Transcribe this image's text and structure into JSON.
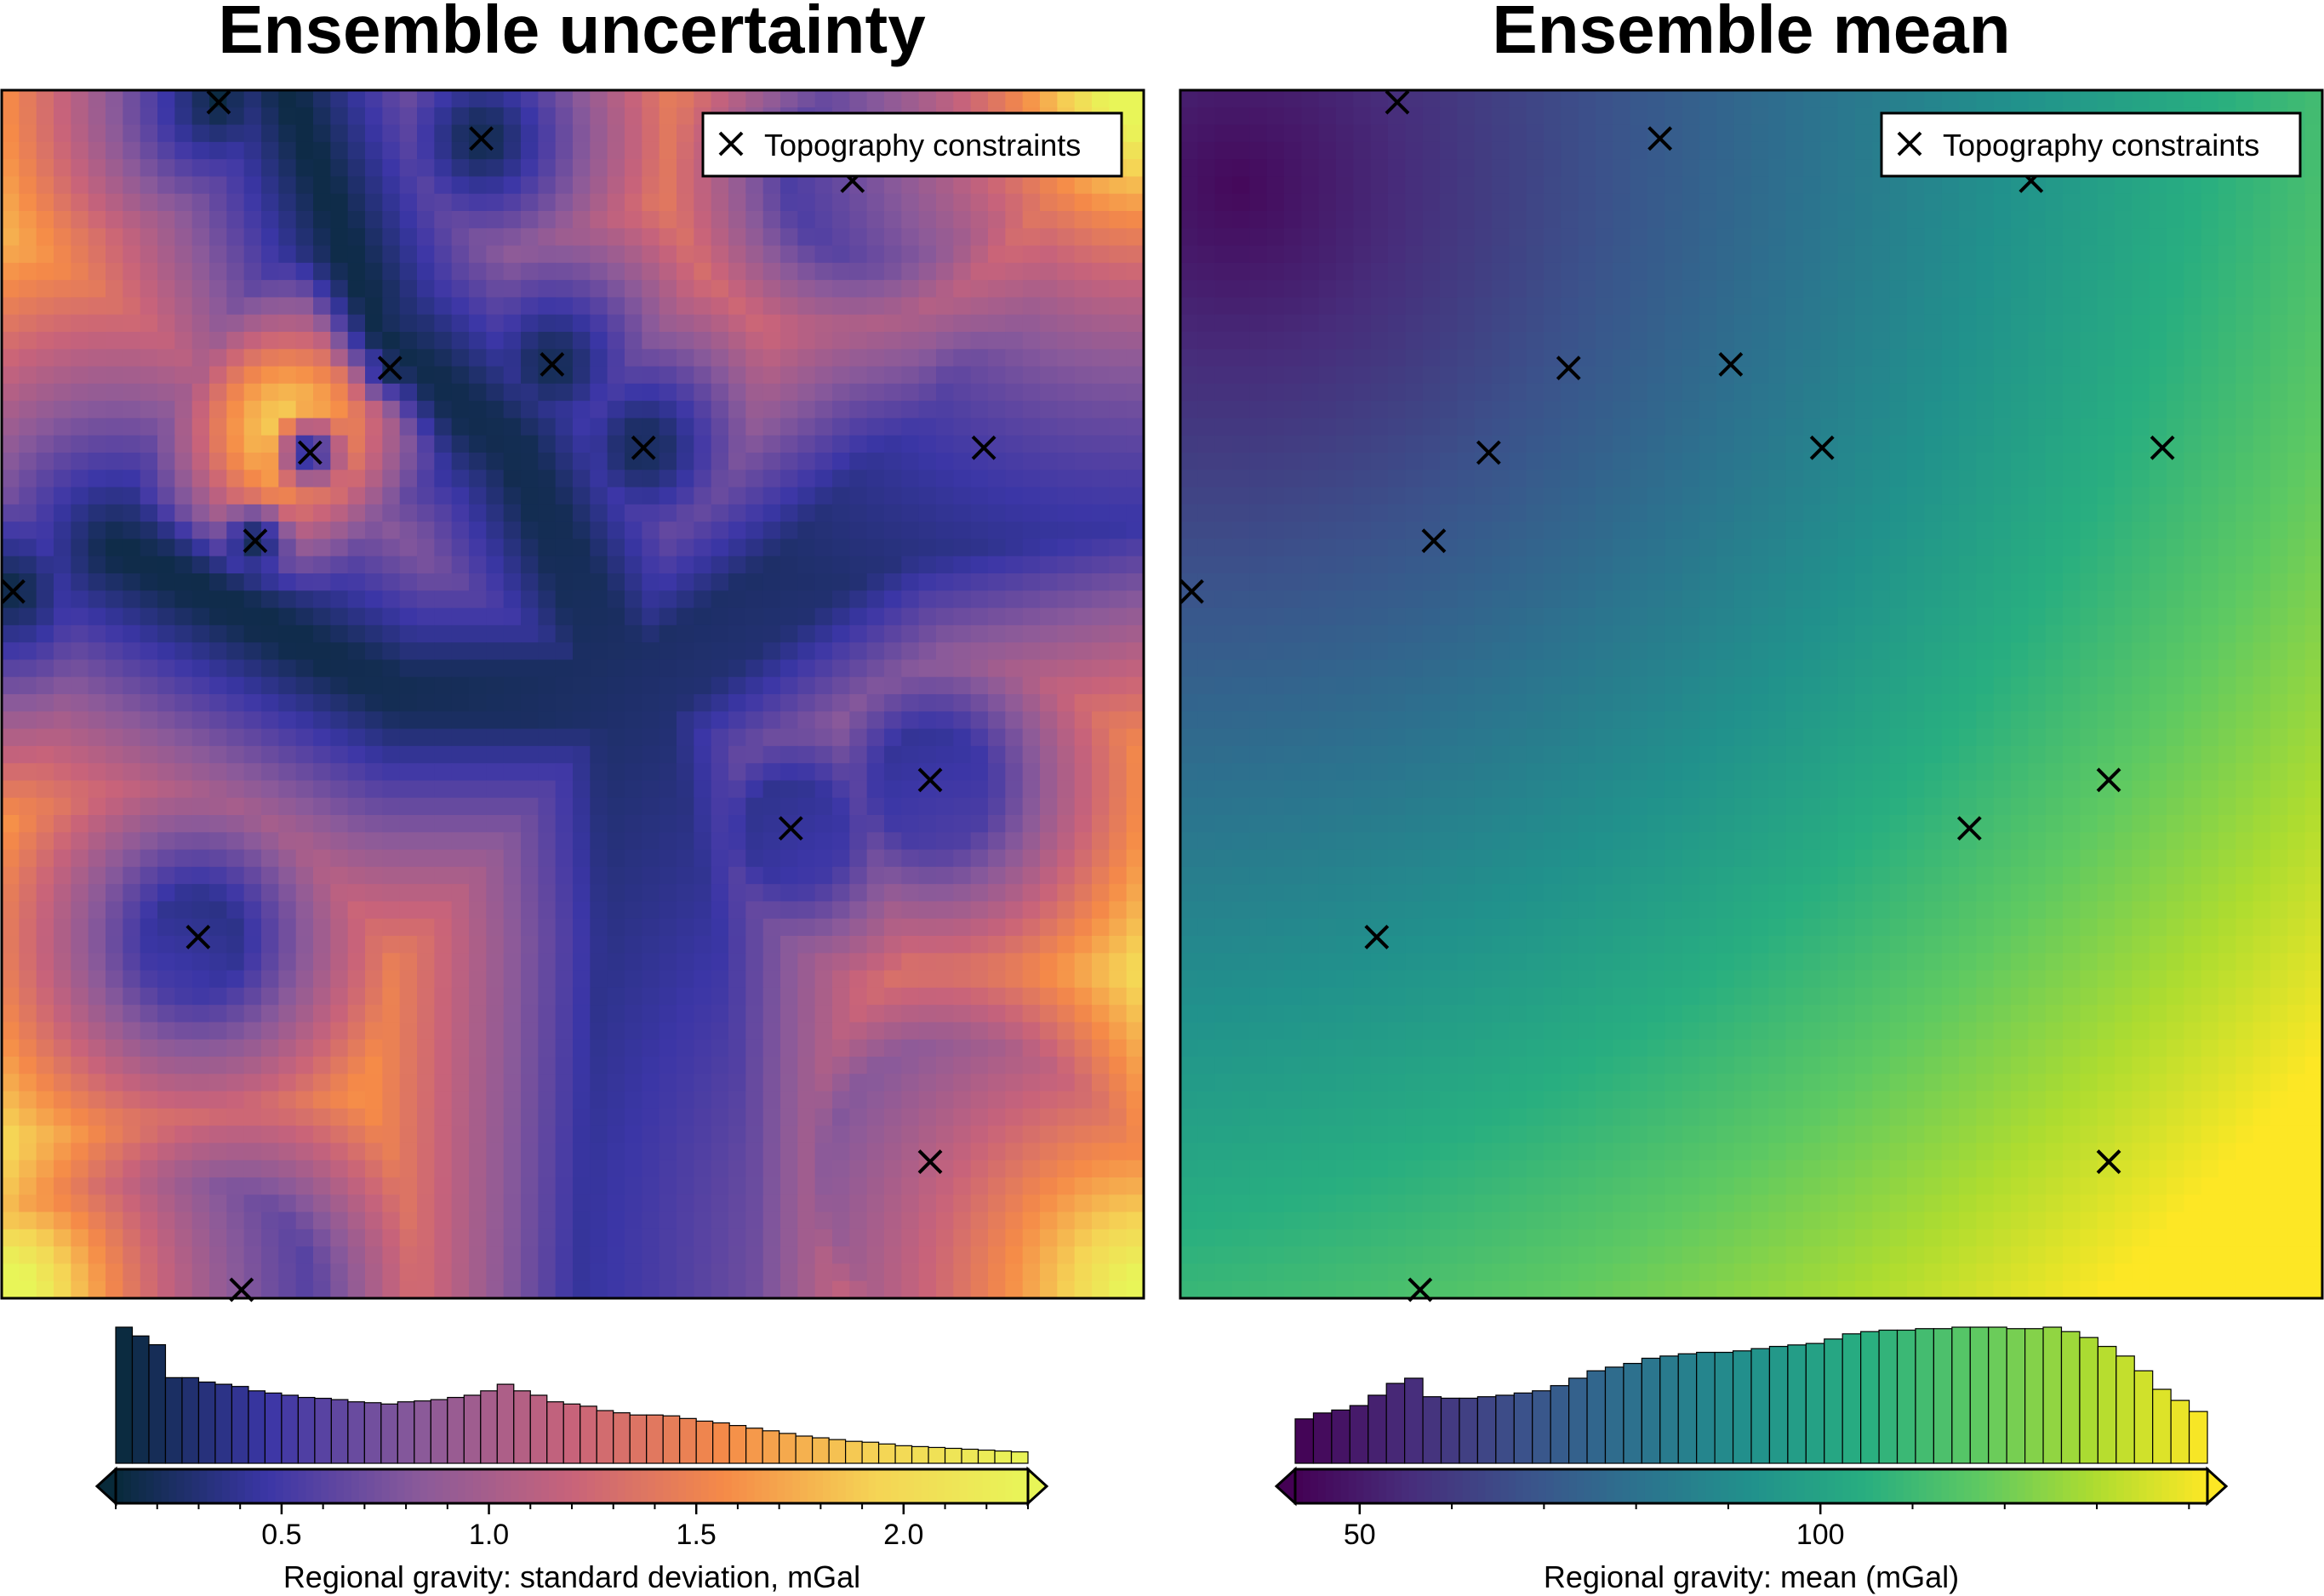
{
  "chart_data": [
    {
      "type": "heatmap",
      "title": "Ensemble uncertainty",
      "legend": {
        "label": "Topography constraints",
        "placement": "top-right"
      },
      "colormap": "thermal",
      "colors": [
        "#082a3a",
        "#3b36a6",
        "#8a5a9a",
        "#c8637a",
        "#f58a48",
        "#f5d455",
        "#e8f558"
      ],
      "colorbar": {
        "label": "Regional gravity:  standard deviation, mGal",
        "range": [
          0.1,
          2.3
        ],
        "ticks": [
          "0.5",
          "1.0",
          "1.5",
          "2.0"
        ],
        "tick_values": [
          0.5,
          1.0,
          1.5,
          2.0
        ]
      },
      "histogram": [
        310,
        290,
        270,
        195,
        195,
        185,
        180,
        175,
        165,
        160,
        155,
        150,
        148,
        145,
        140,
        138,
        135,
        140,
        142,
        145,
        150,
        155,
        165,
        180,
        165,
        155,
        140,
        135,
        130,
        120,
        115,
        110,
        110,
        108,
        102,
        96,
        92,
        86,
        80,
        74,
        68,
        62,
        58,
        54,
        50,
        48,
        44,
        40,
        38,
        36,
        34,
        32,
        30,
        28,
        26
      ],
      "constraints": [
        {
          "x": 0.19,
          "y": 0.99
        },
        {
          "x": 0.42,
          "y": 0.96
        },
        {
          "x": 0.745,
          "y": 0.925
        },
        {
          "x": 0.34,
          "y": 0.77
        },
        {
          "x": 0.482,
          "y": 0.773
        },
        {
          "x": 0.27,
          "y": 0.7
        },
        {
          "x": 0.562,
          "y": 0.704
        },
        {
          "x": 0.86,
          "y": 0.704
        },
        {
          "x": 0.222,
          "y": 0.627
        },
        {
          "x": 0.01,
          "y": 0.585
        },
        {
          "x": 0.813,
          "y": 0.429
        },
        {
          "x": 0.691,
          "y": 0.389
        },
        {
          "x": 0.172,
          "y": 0.299
        },
        {
          "x": 0.813,
          "y": 0.113
        },
        {
          "x": 0.21,
          "y": 0.007
        }
      ],
      "low_features": [
        {
          "x": 0.25,
          "y": 1.0
        },
        {
          "x": 0.33,
          "y": 0.8
        },
        {
          "x": 0.45,
          "y": 0.7
        },
        {
          "x": 0.55,
          "y": 0.5
        },
        {
          "x": 0.57,
          "y": 0.3
        },
        {
          "x": 0.56,
          "y": 0.0
        },
        {
          "x": 0.55,
          "y": 0.5
        },
        {
          "x": 0.78,
          "y": 0.65
        },
        {
          "x": 1.0,
          "y": 0.7
        },
        {
          "x": 0.35,
          "y": 0.5
        },
        {
          "x": 0.1,
          "y": 0.62
        }
      ],
      "peak": {
        "x": 0.25,
        "y": 0.72
      }
    },
    {
      "type": "heatmap",
      "title": "Ensemble mean",
      "legend": {
        "label": "Topography constraints",
        "placement": "top-right"
      },
      "colormap": "viridis",
      "colors": [
        "#440154",
        "#472d7b",
        "#3b528b",
        "#2c728e",
        "#21918c",
        "#28ae80",
        "#5ec962",
        "#addc30",
        "#fde725"
      ],
      "colorbar": {
        "label": "Regional gravity:  mean (mGal)",
        "range": [
          43,
          142
        ],
        "ticks": [
          "50",
          "100"
        ],
        "tick_values": [
          50,
          100
        ]
      },
      "histogram": [
        60,
        68,
        72,
        78,
        92,
        108,
        115,
        90,
        88,
        88,
        90,
        92,
        95,
        98,
        105,
        115,
        125,
        130,
        135,
        142,
        145,
        148,
        150,
        150,
        152,
        155,
        158,
        160,
        162,
        168,
        175,
        178,
        180,
        180,
        182,
        182,
        184,
        184,
        184,
        182,
        182,
        184,
        178,
        170,
        158,
        145,
        125,
        100,
        85,
        70
      ],
      "constraints": [
        {
          "x": 0.19,
          "y": 0.99
        },
        {
          "x": 0.42,
          "y": 0.96
        },
        {
          "x": 0.745,
          "y": 0.925
        },
        {
          "x": 0.34,
          "y": 0.77
        },
        {
          "x": 0.482,
          "y": 0.773
        },
        {
          "x": 0.27,
          "y": 0.7
        },
        {
          "x": 0.562,
          "y": 0.704
        },
        {
          "x": 0.86,
          "y": 0.704
        },
        {
          "x": 0.222,
          "y": 0.627
        },
        {
          "x": 0.01,
          "y": 0.585
        },
        {
          "x": 0.813,
          "y": 0.429
        },
        {
          "x": 0.691,
          "y": 0.389
        },
        {
          "x": 0.172,
          "y": 0.299
        },
        {
          "x": 0.813,
          "y": 0.113
        },
        {
          "x": 0.21,
          "y": 0.007
        }
      ]
    }
  ]
}
